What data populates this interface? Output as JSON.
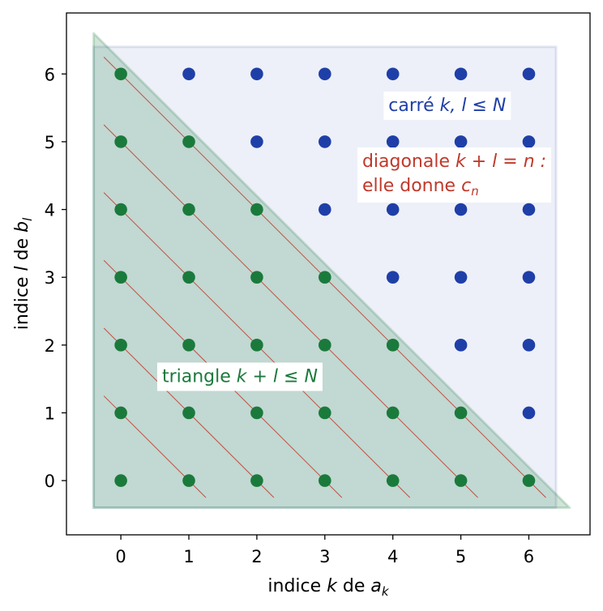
{
  "chart_data": {
    "type": "scatter",
    "xlabel": {
      "pre": "indice ",
      "var": "k",
      "mid": " de ",
      "base": "a",
      "sub": "k"
    },
    "ylabel": {
      "pre": "indice ",
      "var": "l",
      "mid": " de ",
      "base": "b",
      "sub": "l"
    },
    "xlim": [
      -0.8,
      6.9
    ],
    "ylim": [
      -0.8,
      6.9
    ],
    "x_ticks": [
      "0",
      "1",
      "2",
      "3",
      "4",
      "5",
      "6"
    ],
    "y_ticks": [
      "0",
      "1",
      "2",
      "3",
      "4",
      "5",
      "6"
    ],
    "N": 6,
    "grid": false,
    "colors": {
      "triangle_points": "#1a7a3c",
      "square_points": "#1f3fa8",
      "triangle_fill": "#1a7a3c",
      "square_fill": "#1f3fa8",
      "diagonal_lines": "#c0392b",
      "triangle_text": "#1a7a3c",
      "square_text": "#1f3fa8",
      "diagonal_text": "#c0392b"
    },
    "regions": {
      "square": {
        "x": [
          -0.4,
          6.4
        ],
        "y": [
          -0.4,
          6.4
        ]
      },
      "triangle": [
        [
          -0.4,
          -0.4
        ],
        [
          -0.4,
          6.6
        ],
        [
          6.6,
          -0.4
        ]
      ]
    },
    "diagonals": [
      {
        "n": 1,
        "from": [
          -0.25,
          1.25
        ],
        "to": [
          1.25,
          -0.25
        ]
      },
      {
        "n": 2,
        "from": [
          -0.25,
          2.25
        ],
        "to": [
          2.25,
          -0.25
        ]
      },
      {
        "n": 3,
        "from": [
          -0.25,
          3.25
        ],
        "to": [
          3.25,
          -0.25
        ]
      },
      {
        "n": 4,
        "from": [
          -0.25,
          4.25
        ],
        "to": [
          4.25,
          -0.25
        ]
      },
      {
        "n": 5,
        "from": [
          -0.25,
          5.25
        ],
        "to": [
          5.25,
          -0.25
        ]
      },
      {
        "n": 6,
        "from": [
          -0.25,
          6.25
        ],
        "to": [
          6.25,
          -0.25
        ]
      }
    ],
    "annotations": {
      "square": {
        "prefix": "carré ",
        "math": "k, l ≤ N",
        "x": 4.8,
        "y": 5.55
      },
      "diagonal": {
        "line1_prefix": "diagonale ",
        "line1_math": "k + l = n :",
        "line2_prefix": "elle donne ",
        "line2_base": "c",
        "line2_sub": "n",
        "x": 3.55,
        "y": 4.7
      },
      "triangle": {
        "prefix": "triangle ",
        "math": "k + l ≤ N",
        "x": 1.75,
        "y": 1.55
      }
    }
  }
}
